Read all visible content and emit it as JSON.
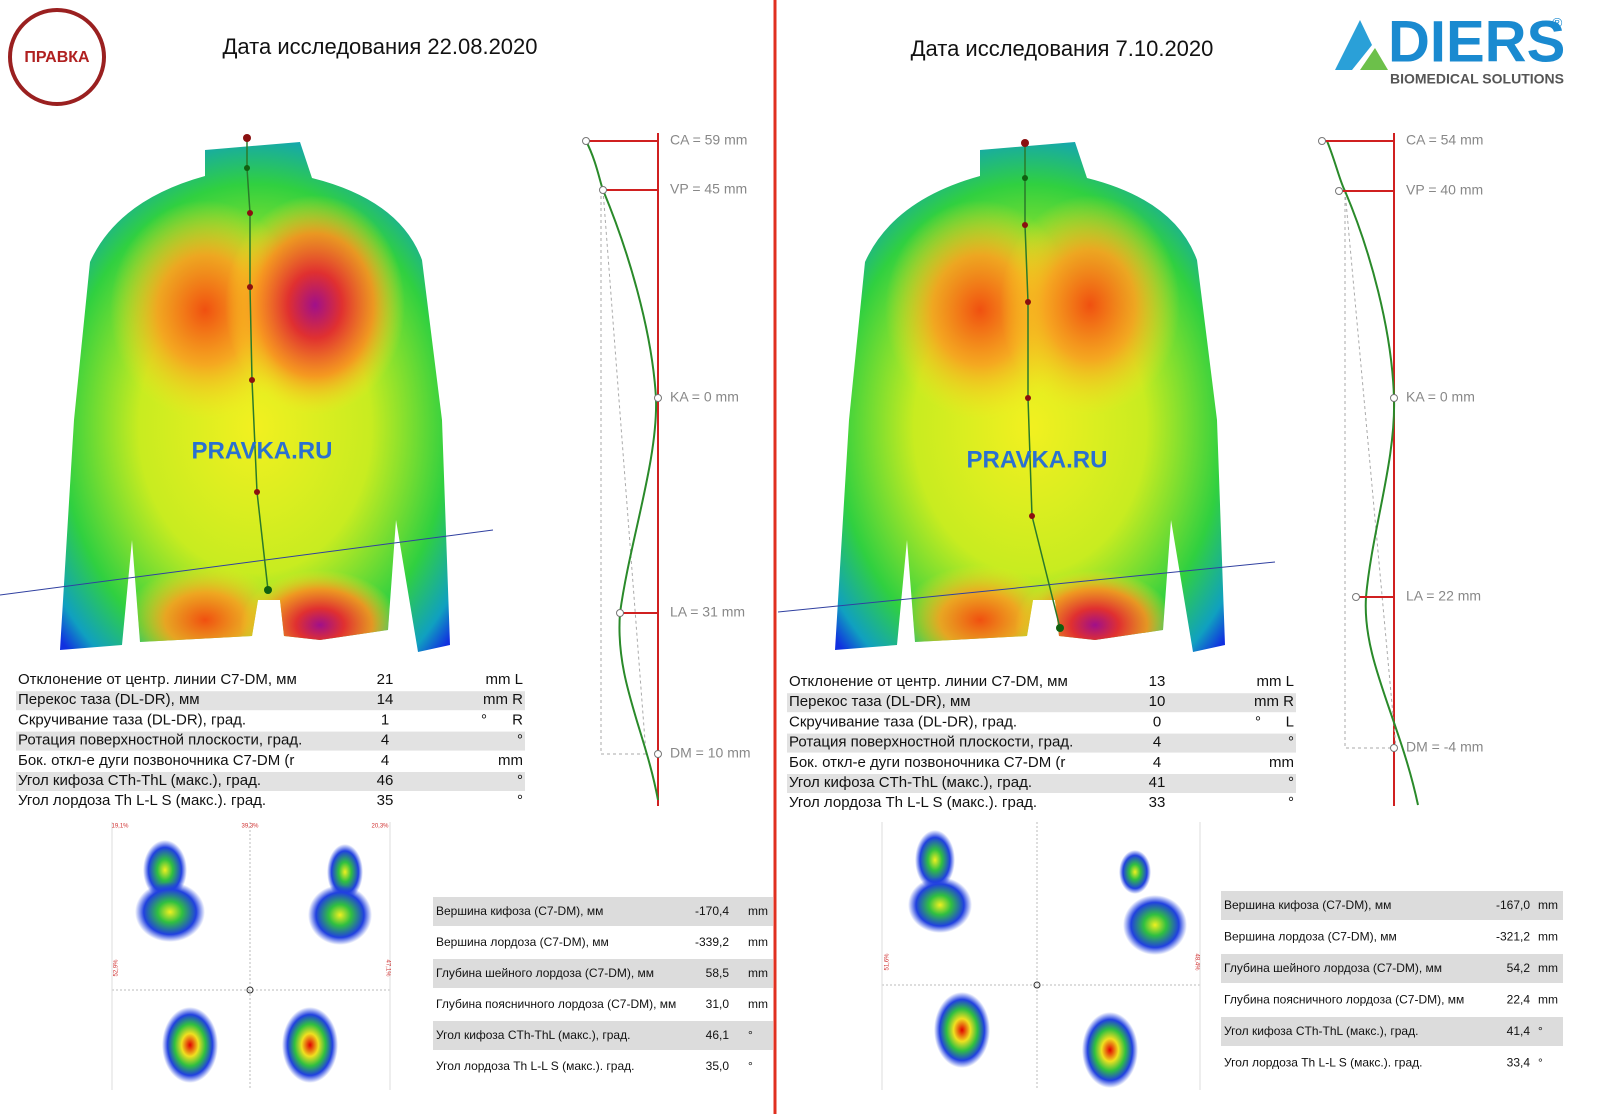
{
  "logo": {
    "badge": "ПРАВКА",
    "brand": "DIERS",
    "registered": "®",
    "tagline": "BIOMEDICAL SOLUTIONS"
  },
  "panels": [
    {
      "date": "Дата исследования 22.08.2020",
      "watermark": "PRAVKA.RU",
      "profile_labels": [
        "CA = 59 mm",
        "VP = 45 mm",
        "KA = 0 mm",
        "LA = 31 mm",
        "DM = 10 mm"
      ],
      "stats": [
        [
          "Отклонение от центр. линии C7-DM, мм",
          "21",
          "mm L"
        ],
        [
          "Перекос таза (DL-DR), мм",
          "14",
          "mm R"
        ],
        [
          "Скручивание таза (DL-DR), град.",
          "1",
          "°",
          "R"
        ],
        [
          "Ротация поверхностной плоскости, град.",
          "4",
          "°"
        ],
        [
          "Бок. откл-е дуги позвоночника  C7-DM (r",
          "4",
          "mm"
        ],
        [
          "Угол кифоза CTh-ThL (макс.), град.",
          "46",
          "°"
        ],
        [
          "Угол лордоза Th L-L S (макс.). град.",
          "35",
          "°"
        ]
      ],
      "foot_labels": [
        "19,1%",
        "39,3%",
        "20,3%",
        "52,9%",
        "47,1%"
      ],
      "summary": [
        [
          "Вершина кифоза (C7-DM), мм",
          "-170,4",
          "mm"
        ],
        [
          "Вершина лордоза (C7-DM), мм",
          "-339,2",
          "mm"
        ],
        [
          "Глубина шейного лордоза (C7-DM), мм",
          "58,5",
          "mm"
        ],
        [
          "Глубина поясничного лордоза (C7-DM), мм",
          "31,0",
          "mm"
        ],
        [
          "Угол кифоза CTh-ThL (макс.), град.",
          "46,1",
          "°"
        ],
        [
          "Угол лордоза Th L-L S (макс.). град.",
          "35,0",
          "°"
        ]
      ]
    },
    {
      "date": "Дата исследования 7.10.2020",
      "watermark": "PRAVKA.RU",
      "profile_labels": [
        "CA = 54 mm",
        "VP = 40 mm",
        "KA = 0 mm",
        "LA = 22 mm",
        "DM = -4 mm"
      ],
      "stats": [
        [
          "Отклонение от центр. линии C7-DM, мм",
          "13",
          "mm L"
        ],
        [
          "Перекос таза (DL-DR), мм",
          "10",
          "mm R"
        ],
        [
          "Скручивание таза (DL-DR), град.",
          "0",
          "°",
          "L"
        ],
        [
          "Ротация поверхностной плоскости, град.",
          "4",
          "°"
        ],
        [
          "Бок. откл-е дуги позвоночника  C7-DM (r",
          "4",
          "mm"
        ],
        [
          "Угол кифоза CTh-ThL (макс.), град.",
          "41",
          "°"
        ],
        [
          "Угол лордоза Th L-L S (макс.). град.",
          "33",
          "°"
        ]
      ],
      "foot_labels": [
        "51,6%",
        "48,4%"
      ],
      "summary": [
        [
          "Вершина кифоза (C7-DM), мм",
          "-167,0",
          "mm"
        ],
        [
          "Вершина лордоза (C7-DM), мм",
          "-321,2",
          "mm"
        ],
        [
          "Глубина шейного лордоза (C7-DM), мм",
          "54,2",
          "mm"
        ],
        [
          "Глубина поясничного лордоза (C7-DM), мм",
          "22,4",
          "mm"
        ],
        [
          "Угол кифоза CTh-ThL (макс.), град.",
          "41,4",
          "°"
        ],
        [
          "Угол лордоза Th L-L S (макс.). град.",
          "33,4",
          "°"
        ]
      ]
    }
  ]
}
